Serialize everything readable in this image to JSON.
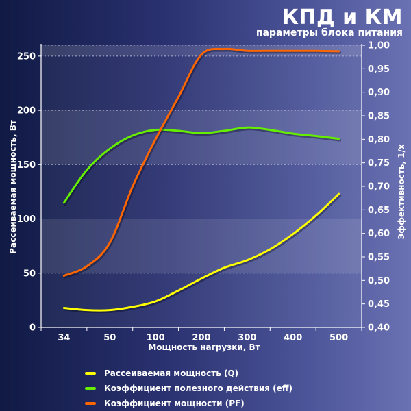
{
  "title": "КПД и КМ",
  "subtitle": "параметры блока питания",
  "chart_data": {
    "type": "line",
    "x": [
      "34",
      "50",
      "100",
      "200",
      "300",
      "400",
      "500"
    ],
    "xlabel": "Мощность нагрузки, Вт",
    "ylabel_left": "Рассеиваемая мощность, Вт",
    "ylabel_right": "Эффективность, 1/x",
    "y_left_lim": [
      0,
      260
    ],
    "y_left_ticks": [
      "0",
      "50",
      "100",
      "150",
      "200",
      "250"
    ],
    "y_right_lim": [
      0.4,
      1.0
    ],
    "y_right_ticks": [
      "0,40",
      "0,45",
      "0,50",
      "0,55",
      "0,60",
      "0,65",
      "0,70",
      "0,75",
      "0,80",
      "0,85",
      "0,90",
      "0,95",
      "1,00"
    ],
    "grid": true,
    "legend_position": "bottom",
    "series": [
      {
        "name": "Рассеиваемая мощность (Q)",
        "axis": "left",
        "color": "#ffff00",
        "points": [
          [
            0,
            18
          ],
          [
            0.5,
            16
          ],
          [
            1,
            16
          ],
          [
            1.5,
            19
          ],
          [
            2,
            24
          ],
          [
            2.5,
            34
          ],
          [
            3,
            45
          ],
          [
            3.5,
            55
          ],
          [
            4,
            62
          ],
          [
            4.5,
            72
          ],
          [
            5,
            86
          ],
          [
            5.5,
            103
          ],
          [
            6,
            123
          ]
        ]
      },
      {
        "name": "Коэффициент полезного действия (eff)",
        "axis": "right",
        "color": "#66ee00",
        "points": [
          [
            0,
            0.665
          ],
          [
            0.5,
            0.735
          ],
          [
            1,
            0.78
          ],
          [
            1.5,
            0.808
          ],
          [
            2,
            0.82
          ],
          [
            2.5,
            0.818
          ],
          [
            3,
            0.813
          ],
          [
            3.5,
            0.818
          ],
          [
            4,
            0.825
          ],
          [
            4.5,
            0.82
          ],
          [
            5,
            0.812
          ],
          [
            5.5,
            0.807
          ],
          [
            6,
            0.801
          ]
        ]
      },
      {
        "name": "Коэффициент мощности (PF)",
        "axis": "right",
        "color": "#ff6600",
        "points": [
          [
            0,
            0.51
          ],
          [
            0.5,
            0.53
          ],
          [
            1,
            0.58
          ],
          [
            1.5,
            0.7
          ],
          [
            2,
            0.8
          ],
          [
            2.5,
            0.89
          ],
          [
            3,
            0.98
          ],
          [
            3.5,
            0.992
          ],
          [
            4,
            0.988
          ],
          [
            4.5,
            0.988
          ],
          [
            5,
            0.988
          ],
          [
            5.5,
            0.988
          ],
          [
            6,
            0.987
          ]
        ]
      }
    ]
  }
}
